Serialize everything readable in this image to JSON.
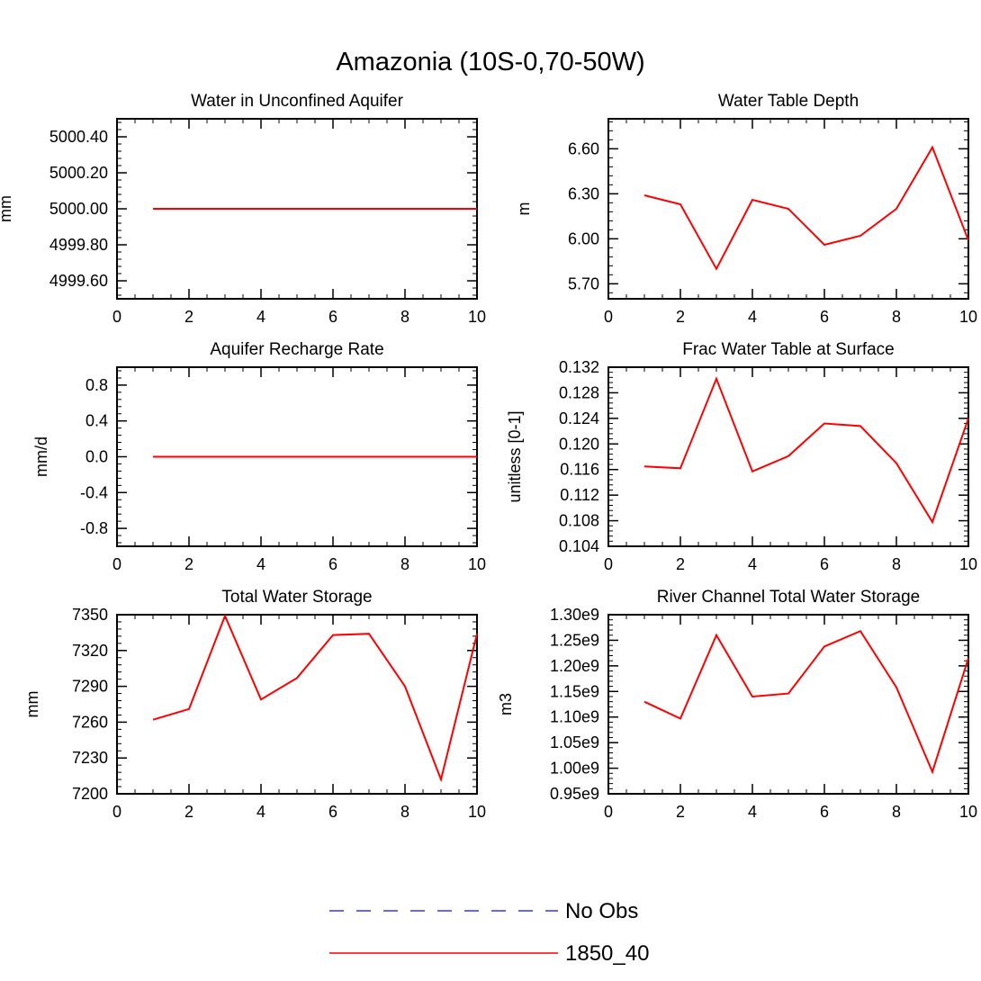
{
  "title": "Amazonia (10S-0,70-50W)",
  "chart_data": [
    {
      "type": "line",
      "title": "Water in Unconfined Aquifer",
      "ylabel": "mm",
      "xlim": [
        0,
        10
      ],
      "ylim": [
        4999.5,
        5000.5
      ],
      "xticks": [
        0,
        2,
        4,
        6,
        8,
        10
      ],
      "yticks": [
        4999.6,
        4999.8,
        5000.0,
        5000.2,
        5000.4
      ],
      "ytick_labels": [
        "4999.60",
        "4999.80",
        "5000.00",
        "5000.20",
        "5000.40"
      ],
      "series": [
        {
          "name": "1850_40",
          "color": "#ff0000",
          "x": [
            1,
            2,
            3,
            4,
            5,
            6,
            7,
            8,
            9,
            10
          ],
          "y": [
            5000,
            5000,
            5000,
            5000,
            5000,
            5000,
            5000,
            5000,
            5000,
            5000
          ]
        }
      ]
    },
    {
      "type": "line",
      "title": "Water Table Depth",
      "ylabel": "m",
      "xlim": [
        0,
        10
      ],
      "ylim": [
        5.6,
        6.8
      ],
      "xticks": [
        0,
        2,
        4,
        6,
        8,
        10
      ],
      "yticks": [
        5.7,
        6.0,
        6.3,
        6.6
      ],
      "ytick_labels": [
        "5.70",
        "6.00",
        "6.30",
        "6.60"
      ],
      "series": [
        {
          "name": "1850_40",
          "color": "#ff0000",
          "x": [
            1,
            2,
            3,
            4,
            5,
            6,
            7,
            8,
            9,
            10
          ],
          "y": [
            6.29,
            6.23,
            5.8,
            6.26,
            6.2,
            5.96,
            6.02,
            6.2,
            6.61,
            5.99
          ]
        }
      ]
    },
    {
      "type": "line",
      "title": "Aquifer Recharge Rate",
      "ylabel": "mm/d",
      "xlim": [
        0,
        10
      ],
      "ylim": [
        -1.0,
        1.0
      ],
      "xticks": [
        0,
        2,
        4,
        6,
        8,
        10
      ],
      "yticks": [
        -0.8,
        -0.4,
        0.0,
        0.4,
        0.8
      ],
      "ytick_labels": [
        "-0.8",
        "-0.4",
        "0.0",
        "0.4",
        "0.8"
      ],
      "series": [
        {
          "name": "1850_40",
          "color": "#ff0000",
          "x": [
            1,
            2,
            3,
            4,
            5,
            6,
            7,
            8,
            9,
            10
          ],
          "y": [
            0,
            0,
            0,
            0,
            0,
            0,
            0,
            0,
            0,
            0
          ]
        }
      ]
    },
    {
      "type": "line",
      "title": "Frac Water Table at Surface",
      "ylabel": "unitless [0-1]",
      "xlim": [
        0,
        10
      ],
      "ylim": [
        0.104,
        0.132
      ],
      "xticks": [
        0,
        2,
        4,
        6,
        8,
        10
      ],
      "yticks": [
        0.104,
        0.108,
        0.112,
        0.116,
        0.12,
        0.124,
        0.128,
        0.132
      ],
      "ytick_labels": [
        "0.104",
        "0.108",
        "0.112",
        "0.116",
        "0.120",
        "0.124",
        "0.128",
        "0.132"
      ],
      "series": [
        {
          "name": "1850_40",
          "color": "#ff0000",
          "x": [
            1,
            2,
            3,
            4,
            5,
            6,
            7,
            8,
            9,
            10
          ],
          "y": [
            0.1165,
            0.1162,
            0.1302,
            0.1157,
            0.1181,
            0.1232,
            0.1228,
            0.117,
            0.1078,
            0.124
          ]
        }
      ]
    },
    {
      "type": "line",
      "title": "Total Water Storage",
      "ylabel": "mm",
      "xlim": [
        0,
        10
      ],
      "ylim": [
        7200,
        7350
      ],
      "xticks": [
        0,
        2,
        4,
        6,
        8,
        10
      ],
      "yticks": [
        7200,
        7230,
        7260,
        7290,
        7320,
        7350
      ],
      "ytick_labels": [
        "7200",
        "7230",
        "7260",
        "7290",
        "7320",
        "7350"
      ],
      "series": [
        {
          "name": "1850_40",
          "color": "#ff0000",
          "x": [
            1,
            2,
            3,
            4,
            5,
            6,
            7,
            8,
            9,
            10
          ],
          "y": [
            7262,
            7271,
            7349,
            7279,
            7297,
            7333,
            7334,
            7290,
            7212,
            7334
          ]
        }
      ]
    },
    {
      "type": "line",
      "title": "River Channel Total Water Storage",
      "ylabel": "m3",
      "xlim": [
        0,
        10
      ],
      "ylim": [
        950000000.0,
        1300000000.0
      ],
      "xticks": [
        0,
        2,
        4,
        6,
        8,
        10
      ],
      "yticks": [
        950000000.0,
        1000000000.0,
        1050000000.0,
        1100000000.0,
        1150000000.0,
        1200000000.0,
        1250000000.0,
        1300000000.0
      ],
      "ytick_labels": [
        "0.95e9",
        "1.00e9",
        "1.05e9",
        "1.10e9",
        "1.15e9",
        "1.20e9",
        "1.25e9",
        "1.30e9"
      ],
      "series": [
        {
          "name": "1850_40",
          "color": "#ff0000",
          "x": [
            1,
            2,
            3,
            4,
            5,
            6,
            7,
            8,
            9,
            10
          ],
          "y": [
            1130000000.0,
            1097000000.0,
            1260000000.0,
            1140000000.0,
            1146000000.0,
            1238000000.0,
            1268000000.0,
            1158000000.0,
            993000000.0,
            1215000000.0
          ]
        }
      ]
    }
  ],
  "legend": {
    "entries": [
      {
        "label": "No Obs",
        "color": "#6666ff",
        "style": "dashed"
      },
      {
        "label": "1850_40",
        "color": "#ff0000",
        "style": "solid"
      }
    ]
  }
}
